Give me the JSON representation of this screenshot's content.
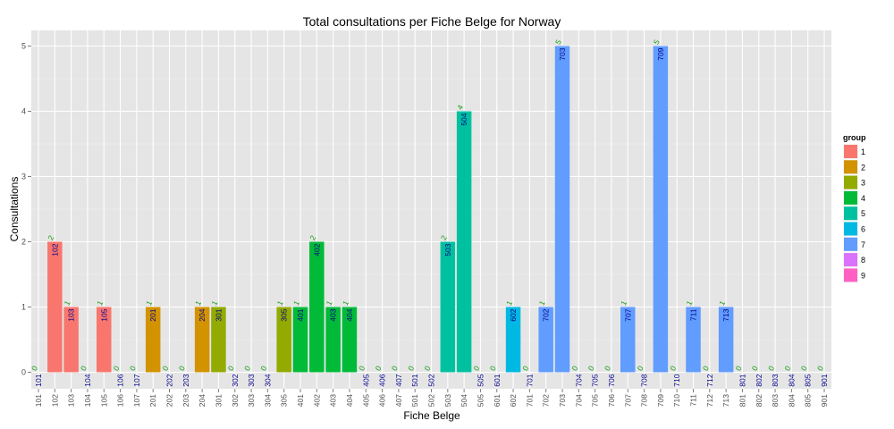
{
  "chart_data": {
    "type": "bar",
    "title": "Total consultations per Fiche Belge for Norway",
    "xlabel": "Fiche Belge",
    "ylabel": "Consultations",
    "ylim": [
      0,
      5.25
    ],
    "y_ticks": [
      0,
      1,
      2,
      3,
      4,
      5
    ],
    "grid": true,
    "legend_position": "right",
    "legend": {
      "title": "group",
      "entries": [
        {
          "label": "1",
          "color": "#F8766D"
        },
        {
          "label": "2",
          "color": "#D39200"
        },
        {
          "label": "3",
          "color": "#93AA00"
        },
        {
          "label": "4",
          "color": "#00BA38"
        },
        {
          "label": "5",
          "color": "#00C19F"
        },
        {
          "label": "6",
          "color": "#00B9E3"
        },
        {
          "label": "7",
          "color": "#619CFF"
        },
        {
          "label": "8",
          "color": "#DB72FB"
        },
        {
          "label": "9",
          "color": "#FF61C3"
        }
      ]
    },
    "categories": [
      "101",
      "102",
      "103",
      "104",
      "105",
      "106",
      "107",
      "201",
      "202",
      "203",
      "204",
      "301",
      "302",
      "303",
      "304",
      "305",
      "401",
      "402",
      "403",
      "404",
      "405",
      "406",
      "407",
      "501",
      "502",
      "503",
      "504",
      "505",
      "601",
      "602",
      "701",
      "702",
      "703",
      "704",
      "705",
      "706",
      "707",
      "708",
      "709",
      "710",
      "711",
      "712",
      "713",
      "801",
      "802",
      "803",
      "804",
      "805",
      "901"
    ],
    "values": [
      0,
      2,
      1,
      0,
      1,
      0,
      0,
      1,
      0,
      0,
      1,
      1,
      0,
      0,
      0,
      1,
      1,
      2,
      1,
      1,
      0,
      0,
      0,
      0,
      0,
      2,
      4,
      0,
      0,
      1,
      0,
      1,
      5,
      0,
      0,
      0,
      1,
      0,
      5,
      0,
      1,
      0,
      1,
      0,
      0,
      0,
      0,
      0,
      0
    ],
    "groups": [
      "1",
      "1",
      "1",
      "1",
      "1",
      "1",
      "1",
      "2",
      "2",
      "2",
      "2",
      "3",
      "3",
      "3",
      "3",
      "3",
      "4",
      "4",
      "4",
      "4",
      "4",
      "4",
      "4",
      "5",
      "5",
      "5",
      "5",
      "5",
      "6",
      "6",
      "7",
      "7",
      "7",
      "7",
      "7",
      "7",
      "7",
      "7",
      "7",
      "7",
      "7",
      "7",
      "7",
      "8",
      "8",
      "8",
      "8",
      "8",
      "9"
    ]
  }
}
